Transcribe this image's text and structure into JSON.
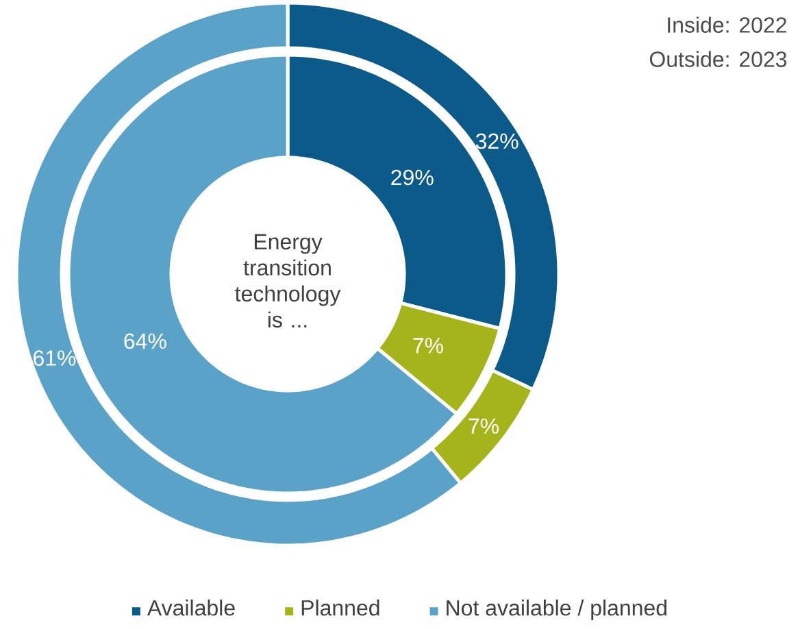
{
  "chart_data": {
    "type": "donut",
    "title": "Energy transition technology is ...",
    "categories": [
      "Available",
      "Planned",
      "Not available / planned"
    ],
    "colors": [
      "#0b5a8a",
      "#a5b41a",
      "#5aa2c8"
    ],
    "series": [
      {
        "values": [
          29,
          7,
          64
        ],
        "value_labels": [
          "29%",
          "7%",
          "64%"
        ]
      },
      {
        "values": [
          32,
          7,
          61
        ],
        "value_labels": [
          "32%",
          "7%",
          "61%"
        ]
      }
    ],
    "legend": "bottom",
    "annotations": [
      "Inside: 2022",
      "Outside: 2023"
    ]
  }
}
